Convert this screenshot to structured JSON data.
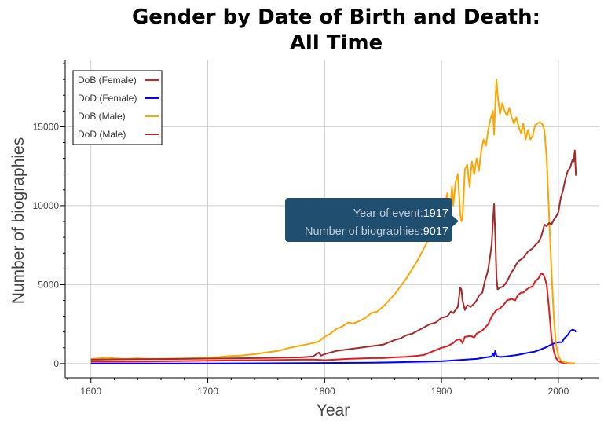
{
  "chart_data": {
    "type": "line",
    "title_line1": "Gender by Date of Birth and Death:",
    "title_line2": "All Time",
    "xlabel": "Year",
    "ylabel": "Number of biographies",
    "xlim": [
      1578,
      2035
    ],
    "ylim": [
      -900,
      19200
    ],
    "xticks": [
      1600,
      1700,
      1800,
      1900,
      2000
    ],
    "yticks": [
      0,
      5000,
      10000,
      15000
    ],
    "grid": true,
    "legend_position": "top-left",
    "series": [
      {
        "name": "DoB (Female)",
        "color": "#e31a1c",
        "points": [
          [
            1600,
            120
          ],
          [
            1650,
            140
          ],
          [
            1700,
            180
          ],
          [
            1720,
            200
          ],
          [
            1740,
            220
          ],
          [
            1760,
            230
          ],
          [
            1780,
            250
          ],
          [
            1790,
            260
          ],
          [
            1800,
            220
          ],
          [
            1810,
            260
          ],
          [
            1820,
            300
          ],
          [
            1840,
            350
          ],
          [
            1850,
            350
          ],
          [
            1860,
            400
          ],
          [
            1870,
            430
          ],
          [
            1880,
            500
          ],
          [
            1885,
            550
          ],
          [
            1890,
            700
          ],
          [
            1895,
            850
          ],
          [
            1900,
            1000
          ],
          [
            1905,
            1100
          ],
          [
            1910,
            1300
          ],
          [
            1913,
            1500
          ],
          [
            1916,
            1550
          ],
          [
            1918,
            1300
          ],
          [
            1920,
            1700
          ],
          [
            1925,
            1750
          ],
          [
            1928,
            1650
          ],
          [
            1930,
            1900
          ],
          [
            1935,
            2100
          ],
          [
            1940,
            2500
          ],
          [
            1943,
            3000
          ],
          [
            1945,
            3200
          ],
          [
            1947,
            3400
          ],
          [
            1950,
            3500
          ],
          [
            1953,
            3700
          ],
          [
            1956,
            4000
          ],
          [
            1960,
            4100
          ],
          [
            1963,
            4000
          ],
          [
            1965,
            4300
          ],
          [
            1968,
            4500
          ],
          [
            1970,
            4500
          ],
          [
            1973,
            4700
          ],
          [
            1975,
            4800
          ],
          [
            1978,
            4900
          ],
          [
            1980,
            5200
          ],
          [
            1983,
            5400
          ],
          [
            1985,
            5700
          ],
          [
            1987,
            5650
          ],
          [
            1988,
            5500
          ],
          [
            1990,
            5000
          ],
          [
            1992,
            3500
          ],
          [
            1994,
            1700
          ],
          [
            1996,
            800
          ],
          [
            1998,
            350
          ],
          [
            2000,
            150
          ],
          [
            2003,
            60
          ],
          [
            2006,
            20
          ],
          [
            2010,
            10
          ],
          [
            2014,
            5
          ]
        ]
      },
      {
        "name": "DoD (Female)",
        "color": "#0000ff",
        "points": [
          [
            1600,
            0
          ],
          [
            1650,
            5
          ],
          [
            1700,
            10
          ],
          [
            1750,
            20
          ],
          [
            1800,
            40
          ],
          [
            1840,
            60
          ],
          [
            1850,
            70
          ],
          [
            1870,
            100
          ],
          [
            1890,
            130
          ],
          [
            1900,
            150
          ],
          [
            1910,
            200
          ],
          [
            1920,
            250
          ],
          [
            1930,
            300
          ],
          [
            1940,
            420
          ],
          [
            1943,
            450
          ],
          [
            1944,
            650
          ],
          [
            1945,
            500
          ],
          [
            1946,
            800
          ],
          [
            1947,
            480
          ],
          [
            1950,
            420
          ],
          [
            1955,
            450
          ],
          [
            1960,
            500
          ],
          [
            1965,
            550
          ],
          [
            1970,
            620
          ],
          [
            1975,
            700
          ],
          [
            1980,
            760
          ],
          [
            1985,
            900
          ],
          [
            1990,
            1050
          ],
          [
            1995,
            1250
          ],
          [
            2000,
            1350
          ],
          [
            2003,
            1350
          ],
          [
            2005,
            1600
          ],
          [
            2008,
            1800
          ],
          [
            2010,
            2050
          ],
          [
            2012,
            2150
          ],
          [
            2014,
            2100
          ],
          [
            2015,
            2000
          ]
        ]
      },
      {
        "name": "DoB (Male)",
        "color": "#ffa500",
        "points": [
          [
            1600,
            300
          ],
          [
            1610,
            350
          ],
          [
            1615,
            380
          ],
          [
            1620,
            330
          ],
          [
            1630,
            300
          ],
          [
            1640,
            330
          ],
          [
            1650,
            300
          ],
          [
            1660,
            310
          ],
          [
            1670,
            320
          ],
          [
            1680,
            330
          ],
          [
            1690,
            350
          ],
          [
            1700,
            380
          ],
          [
            1710,
            420
          ],
          [
            1720,
            480
          ],
          [
            1730,
            520
          ],
          [
            1740,
            600
          ],
          [
            1750,
            700
          ],
          [
            1760,
            800
          ],
          [
            1770,
            1000
          ],
          [
            1780,
            1150
          ],
          [
            1790,
            1300
          ],
          [
            1795,
            1400
          ],
          [
            1800,
            1700
          ],
          [
            1805,
            1900
          ],
          [
            1810,
            2200
          ],
          [
            1815,
            2350
          ],
          [
            1820,
            2600
          ],
          [
            1825,
            2550
          ],
          [
            1830,
            2700
          ],
          [
            1835,
            2900
          ],
          [
            1840,
            3200
          ],
          [
            1845,
            3300
          ],
          [
            1850,
            3600
          ],
          [
            1855,
            4000
          ],
          [
            1860,
            4400
          ],
          [
            1865,
            4900
          ],
          [
            1870,
            5400
          ],
          [
            1875,
            6000
          ],
          [
            1880,
            6600
          ],
          [
            1885,
            7300
          ],
          [
            1890,
            8000
          ],
          [
            1895,
            8700
          ],
          [
            1900,
            9300
          ],
          [
            1902,
            9800
          ],
          [
            1905,
            10800
          ],
          [
            1907,
            9200
          ],
          [
            1909,
            11200
          ],
          [
            1910,
            10000
          ],
          [
            1912,
            11500
          ],
          [
            1914,
            12000
          ],
          [
            1916,
            9500
          ],
          [
            1917,
            9017
          ],
          [
            1918,
            9200
          ],
          [
            1920,
            12300
          ],
          [
            1922,
            12600
          ],
          [
            1924,
            11200
          ],
          [
            1926,
            12800
          ],
          [
            1928,
            12000
          ],
          [
            1930,
            13000
          ],
          [
            1932,
            12200
          ],
          [
            1934,
            13500
          ],
          [
            1936,
            14200
          ],
          [
            1938,
            13800
          ],
          [
            1940,
            14800
          ],
          [
            1942,
            15500
          ],
          [
            1944,
            16000
          ],
          [
            1945,
            14500
          ],
          [
            1946,
            16500
          ],
          [
            1947,
            18000
          ],
          [
            1948,
            17000
          ],
          [
            1950,
            15800
          ],
          [
            1952,
            16500
          ],
          [
            1954,
            16000
          ],
          [
            1956,
            15700
          ],
          [
            1958,
            16200
          ],
          [
            1960,
            15600
          ],
          [
            1962,
            15200
          ],
          [
            1964,
            15600
          ],
          [
            1966,
            15000
          ],
          [
            1968,
            14600
          ],
          [
            1970,
            15200
          ],
          [
            1972,
            14200
          ],
          [
            1974,
            14800
          ],
          [
            1976,
            14200
          ],
          [
            1978,
            14400
          ],
          [
            1980,
            15100
          ],
          [
            1982,
            15200
          ],
          [
            1984,
            15300
          ],
          [
            1986,
            15200
          ],
          [
            1988,
            14800
          ],
          [
            1990,
            13000
          ],
          [
            1992,
            9500
          ],
          [
            1994,
            6000
          ],
          [
            1996,
            3000
          ],
          [
            1998,
            1200
          ],
          [
            2000,
            500
          ],
          [
            2002,
            200
          ],
          [
            2005,
            80
          ],
          [
            2010,
            30
          ],
          [
            2014,
            10
          ]
        ]
      },
      {
        "name": "DoD (Male)",
        "color": "#a52a2a",
        "points": [
          [
            1600,
            250
          ],
          [
            1620,
            270
          ],
          [
            1640,
            280
          ],
          [
            1660,
            290
          ],
          [
            1680,
            300
          ],
          [
            1700,
            320
          ],
          [
            1720,
            330
          ],
          [
            1740,
            350
          ],
          [
            1760,
            370
          ],
          [
            1780,
            400
          ],
          [
            1790,
            450
          ],
          [
            1795,
            700
          ],
          [
            1797,
            500
          ],
          [
            1800,
            600
          ],
          [
            1805,
            700
          ],
          [
            1810,
            800
          ],
          [
            1820,
            900
          ],
          [
            1830,
            1000
          ],
          [
            1840,
            1100
          ],
          [
            1850,
            1200
          ],
          [
            1855,
            1350
          ],
          [
            1860,
            1500
          ],
          [
            1865,
            1600
          ],
          [
            1870,
            1800
          ],
          [
            1875,
            1900
          ],
          [
            1880,
            2100
          ],
          [
            1885,
            2300
          ],
          [
            1890,
            2500
          ],
          [
            1895,
            2600
          ],
          [
            1900,
            2900
          ],
          [
            1905,
            3000
          ],
          [
            1908,
            3300
          ],
          [
            1910,
            3200
          ],
          [
            1912,
            3400
          ],
          [
            1914,
            3600
          ],
          [
            1916,
            4800
          ],
          [
            1917,
            4700
          ],
          [
            1918,
            4000
          ],
          [
            1920,
            3400
          ],
          [
            1922,
            3700
          ],
          [
            1925,
            3600
          ],
          [
            1928,
            3800
          ],
          [
            1930,
            4000
          ],
          [
            1932,
            4300
          ],
          [
            1935,
            4500
          ],
          [
            1937,
            5200
          ],
          [
            1939,
            5700
          ],
          [
            1940,
            6000
          ],
          [
            1941,
            6500
          ],
          [
            1942,
            7000
          ],
          [
            1943,
            7600
          ],
          [
            1944,
            9000
          ],
          [
            1945,
            10100
          ],
          [
            1946,
            8000
          ],
          [
            1947,
            5500
          ],
          [
            1948,
            4700
          ],
          [
            1950,
            4800
          ],
          [
            1953,
            4900
          ],
          [
            1956,
            5200
          ],
          [
            1958,
            5500
          ],
          [
            1960,
            5800
          ],
          [
            1962,
            6000
          ],
          [
            1964,
            6300
          ],
          [
            1966,
            6500
          ],
          [
            1968,
            6600
          ],
          [
            1970,
            6700
          ],
          [
            1972,
            6900
          ],
          [
            1974,
            7100
          ],
          [
            1976,
            7200
          ],
          [
            1978,
            7300
          ],
          [
            1980,
            7500
          ],
          [
            1983,
            7700
          ],
          [
            1985,
            8000
          ],
          [
            1987,
            8500
          ],
          [
            1988,
            8800
          ],
          [
            1990,
            8700
          ],
          [
            1992,
            8900
          ],
          [
            1994,
            8800
          ],
          [
            1996,
            9100
          ],
          [
            1998,
            9300
          ],
          [
            2000,
            9600
          ],
          [
            2002,
            10500
          ],
          [
            2004,
            11000
          ],
          [
            2006,
            11700
          ],
          [
            2008,
            12200
          ],
          [
            2010,
            12400
          ],
          [
            2012,
            12900
          ],
          [
            2013,
            12800
          ],
          [
            2014,
            13500
          ],
          [
            2015,
            11900
          ]
        ]
      }
    ],
    "tooltip": {
      "x_label": "Year of event:",
      "x_value": "1917",
      "y_label": "Number of biographies:",
      "y_value": "9017",
      "anchor": [
        1917,
        9017
      ]
    }
  }
}
